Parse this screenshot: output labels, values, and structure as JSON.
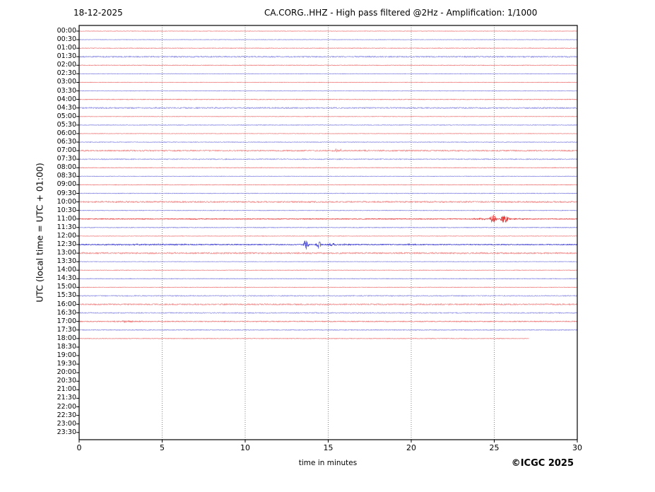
{
  "header": {
    "date": "18-12-2025",
    "title": "CA.CORG..HHZ - High pass filtered @2Hz - Amplification: 1/1000"
  },
  "footer": {
    "copyright": "©ICGC 2025"
  },
  "chart_data": {
    "type": "line",
    "subtype": "helicorder-dayplot",
    "title": "CA.CORG..HHZ - High pass filtered @2Hz - Amplification: 1/1000",
    "date": "18-12-2025",
    "xlabel": "time in minutes",
    "ylabel": "UTC (local time = UTC + 01:00)",
    "x_range": [
      0,
      30
    ],
    "x_ticks": [
      0,
      5,
      10,
      15,
      20,
      25,
      30
    ],
    "grid": {
      "vertical_dotted_at": [
        5,
        10,
        15,
        20,
        25
      ],
      "color": "#777777"
    },
    "trace_colors": {
      "red": "#e01818",
      "blue": "#2828cc"
    },
    "frame_color": "#000000",
    "minutes_per_row": 30,
    "rows": [
      {
        "label": "00:00",
        "color": "red",
        "end": 30,
        "noise": 0.4
      },
      {
        "label": "00:30",
        "color": "blue",
        "end": 30,
        "noise": 0.4
      },
      {
        "label": "01:00",
        "color": "red",
        "end": 30,
        "noise": 0.5
      },
      {
        "label": "01:30",
        "color": "blue",
        "end": 30,
        "noise": 1.2
      },
      {
        "label": "02:00",
        "color": "red",
        "end": 30,
        "noise": 0.5
      },
      {
        "label": "02:30",
        "color": "blue",
        "end": 30,
        "noise": 0.4
      },
      {
        "label": "03:00",
        "color": "red",
        "end": 30,
        "noise": 0.4
      },
      {
        "label": "03:30",
        "color": "blue",
        "end": 30,
        "noise": 0.4
      },
      {
        "label": "04:00",
        "color": "red",
        "end": 30,
        "noise": 0.6
      },
      {
        "label": "04:30",
        "color": "blue",
        "end": 30,
        "noise": 1.2
      },
      {
        "label": "05:00",
        "color": "red",
        "end": 30,
        "noise": 0.4
      },
      {
        "label": "05:30",
        "color": "blue",
        "end": 30,
        "noise": 0.5
      },
      {
        "label": "06:00",
        "color": "red",
        "end": 30,
        "noise": 0.4
      },
      {
        "label": "06:30",
        "color": "blue",
        "end": 30,
        "noise": 0.5
      },
      {
        "label": "07:00",
        "color": "red",
        "end": 30,
        "noise": 1.2
      },
      {
        "label": "07:30",
        "color": "blue",
        "end": 30,
        "noise": 0.9
      },
      {
        "label": "08:00",
        "color": "red",
        "end": 30,
        "noise": 0.5
      },
      {
        "label": "08:30",
        "color": "blue",
        "end": 30,
        "noise": 0.4
      },
      {
        "label": "09:00",
        "color": "red",
        "end": 30,
        "noise": 0.5
      },
      {
        "label": "09:30",
        "color": "blue",
        "end": 30,
        "noise": 0.5
      },
      {
        "label": "10:00",
        "color": "red",
        "end": 30,
        "noise": 1.3
      },
      {
        "label": "10:30",
        "color": "blue",
        "end": 30,
        "noise": 0.5
      },
      {
        "label": "11:00",
        "color": "red",
        "end": 30,
        "noise": 0.6
      },
      {
        "label": "11:30",
        "color": "blue",
        "end": 30,
        "noise": 0.6
      },
      {
        "label": "12:00",
        "color": "red",
        "end": 30,
        "noise": 0.4
      },
      {
        "label": "12:30",
        "color": "blue",
        "end": 30,
        "noise": 0.8
      },
      {
        "label": "13:00",
        "color": "red",
        "end": 30,
        "noise": 1.3
      },
      {
        "label": "13:30",
        "color": "blue",
        "end": 30,
        "noise": 0.4
      },
      {
        "label": "14:00",
        "color": "red",
        "end": 30,
        "noise": 0.4
      },
      {
        "label": "14:30",
        "color": "blue",
        "end": 30,
        "noise": 0.5
      },
      {
        "label": "15:00",
        "color": "red",
        "end": 30,
        "noise": 0.4
      },
      {
        "label": "15:30",
        "color": "blue",
        "end": 30,
        "noise": 0.9
      },
      {
        "label": "16:00",
        "color": "red",
        "end": 30,
        "noise": 1.2
      },
      {
        "label": "16:30",
        "color": "blue",
        "end": 30,
        "noise": 0.9
      },
      {
        "label": "17:00",
        "color": "red",
        "end": 30,
        "noise": 0.8
      },
      {
        "label": "17:30",
        "color": "blue",
        "end": 30,
        "noise": 0.6
      },
      {
        "label": "18:00",
        "color": "red",
        "end": 27.1,
        "noise": 0.5
      },
      {
        "label": "18:30",
        "color": "blue",
        "end": 0,
        "noise": 0
      },
      {
        "label": "19:00",
        "color": "red",
        "end": 0,
        "noise": 0
      },
      {
        "label": "19:30",
        "color": "blue",
        "end": 0,
        "noise": 0
      },
      {
        "label": "20:00",
        "color": "red",
        "end": 0,
        "noise": 0
      },
      {
        "label": "20:30",
        "color": "blue",
        "end": 0,
        "noise": 0
      },
      {
        "label": "21:00",
        "color": "red",
        "end": 0,
        "noise": 0
      },
      {
        "label": "21:30",
        "color": "blue",
        "end": 0,
        "noise": 0
      },
      {
        "label": "22:00",
        "color": "red",
        "end": 0,
        "noise": 0
      },
      {
        "label": "22:30",
        "color": "blue",
        "end": 0,
        "noise": 0
      },
      {
        "label": "23:00",
        "color": "red",
        "end": 0,
        "noise": 0
      },
      {
        "label": "23:30",
        "color": "blue",
        "end": 0,
        "noise": 0
      }
    ],
    "events": [
      {
        "row_label": "07:00",
        "description": "small burst near minute 15.5",
        "bursts": [
          {
            "t": 15.5,
            "amp": 2.6,
            "w": 0.05
          },
          {
            "t": 15.78,
            "amp": 2.2,
            "w": 0.05
          },
          {
            "t": 16.6,
            "amp": 0.5,
            "w": 1.0
          }
        ]
      },
      {
        "row_label": "11:00",
        "description": "strong event, two bursts near minutes 25-26",
        "bursts": [
          {
            "t": 6.9,
            "amp": 0.7,
            "w": 0.25
          },
          {
            "t": 24.2,
            "amp": 0.9,
            "w": 0.45
          },
          {
            "t": 24.94,
            "amp": 6.8,
            "w": 0.12
          },
          {
            "t": 25.5,
            "amp": 5.5,
            "w": 0.08
          },
          {
            "t": 25.72,
            "amp": 8.0,
            "w": 0.1
          },
          {
            "t": 26.4,
            "amp": 0.8,
            "w": 0.4
          }
        ]
      },
      {
        "row_label": "12:30",
        "description": "strong event, two bursts near minutes 13.7-14.4 with coda",
        "bursts": [
          {
            "t": 4.5,
            "amp": 0.7,
            "w": 2.8
          },
          {
            "t": 13.68,
            "amp": 8.0,
            "w": 0.1
          },
          {
            "t": 14.42,
            "amp": 6.0,
            "w": 0.1
          },
          {
            "t": 15.1,
            "amp": 1.6,
            "w": 0.25
          },
          {
            "t": 15.9,
            "amp": 0.9,
            "w": 0.5
          },
          {
            "t": 19.88,
            "amp": 1.5,
            "w": 0.07
          },
          {
            "t": 20.15,
            "amp": 0.6,
            "w": 0.2
          }
        ]
      },
      {
        "row_label": "17:00",
        "description": "minor noise burst near minute 3",
        "bursts": [
          {
            "t": 2.8,
            "amp": 1.0,
            "w": 0.7
          }
        ]
      }
    ]
  }
}
